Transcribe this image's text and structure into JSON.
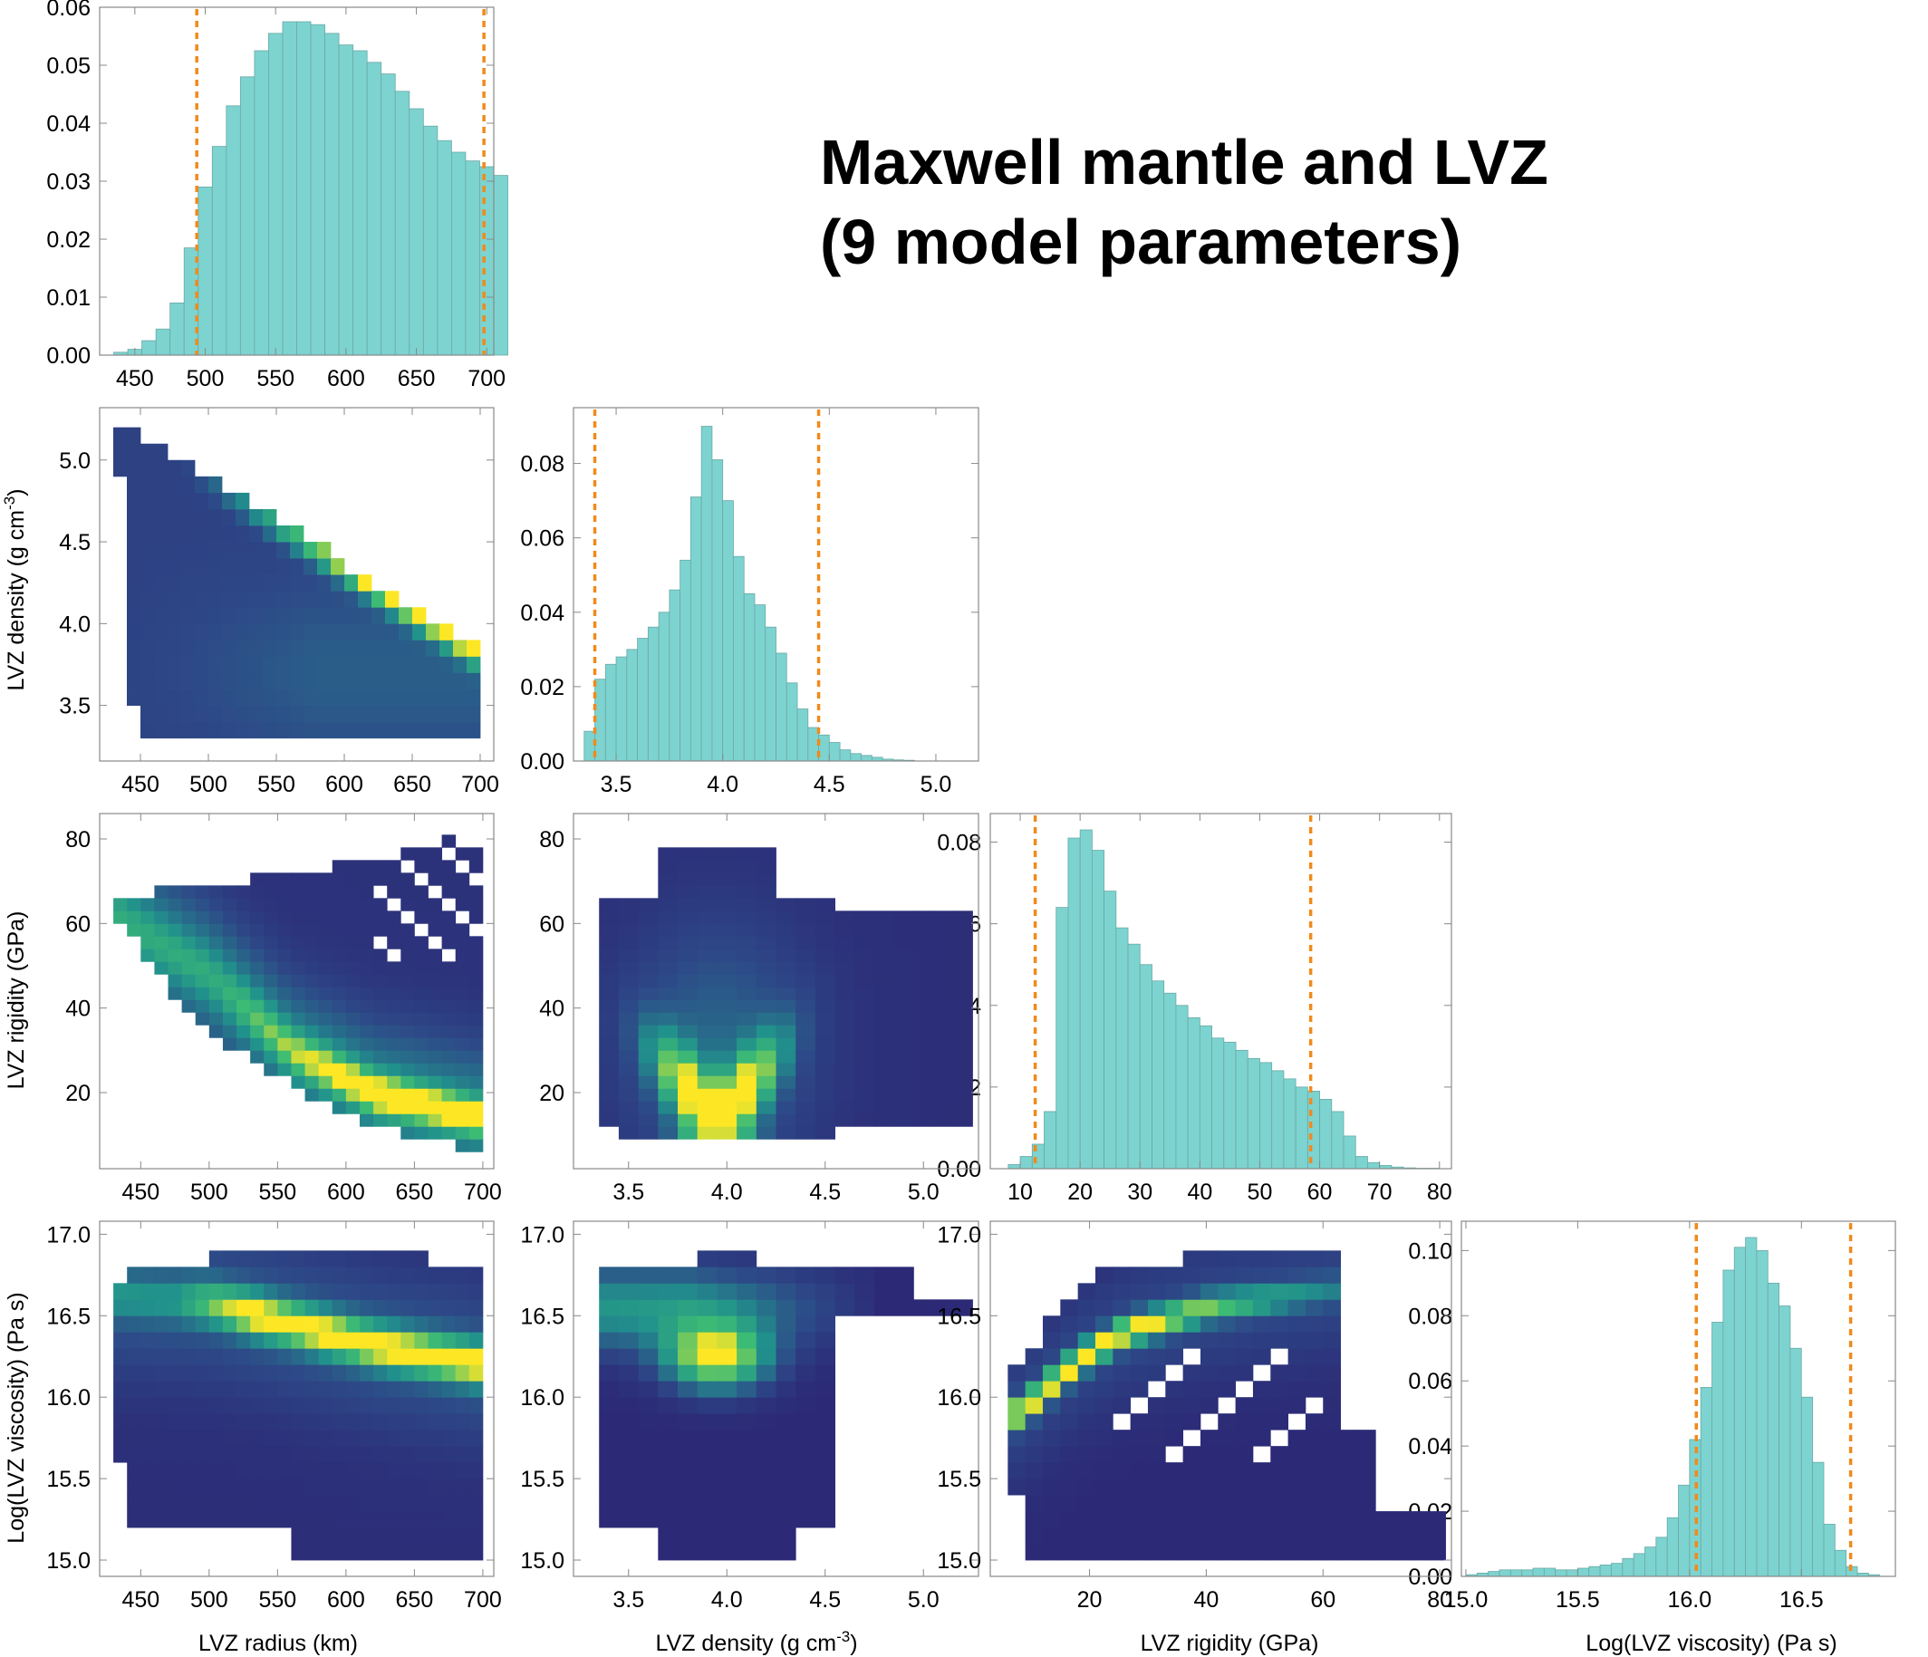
{
  "title": {
    "line1": "Maxwell mantle and LVZ",
    "line2": "(9 model parameters)"
  },
  "labels": {
    "radius_x": "LVZ radius (km)",
    "density_x": "LVZ density (g cm",
    "density_y": "LVZ density (g cm",
    "density_exp": "-3",
    "density_close": ")",
    "rigidity_x": "LVZ rigidity (GPa)",
    "rigidity_y": "LVZ rigidity (GPa)",
    "viscosity_x": "Log(LVZ viscosity) (Pa s)",
    "viscosity_y": "Log(LVZ viscosity) (Pa s)"
  },
  "colors": {
    "hist_fill": "#7dd3cf",
    "hist_edge": "#6aa9a6",
    "bound_line": "#f08a1c",
    "viridis_low": "#2b1b6e",
    "viridis_mid": "#21918c",
    "viridis_high": "#fde725",
    "frame": "#888888"
  },
  "chart_data": [
    {
      "id": "radius-hist",
      "type": "bar",
      "row": 0,
      "col": 0,
      "xlim": [
        425,
        705
      ],
      "ylim": [
        0,
        0.06
      ],
      "xticks": [
        "450",
        "500",
        "550",
        "600",
        "650",
        "700"
      ],
      "xtick_values": [
        450,
        500,
        550,
        600,
        650,
        700
      ],
      "yticks": [
        "0.00",
        "0.01",
        "0.02",
        "0.03",
        "0.04",
        "0.05",
        "0.06"
      ],
      "ytick_values": [
        0,
        0.01,
        0.02,
        0.03,
        0.04,
        0.05,
        0.06
      ],
      "bin_start": 435,
      "bin_width": 10,
      "values": [
        0.0005,
        0.001,
        0.0025,
        0.0045,
        0.009,
        0.0185,
        0.029,
        0.036,
        0.043,
        0.048,
        0.0525,
        0.0555,
        0.0575,
        0.0575,
        0.057,
        0.0555,
        0.0535,
        0.0525,
        0.0505,
        0.0485,
        0.0455,
        0.0425,
        0.0395,
        0.037,
        0.035,
        0.0335,
        0.0325,
        0.031
      ],
      "bounds": [
        494,
        698
      ]
    },
    {
      "id": "density-hist",
      "type": "bar",
      "row": 1,
      "col": 1,
      "xlim": [
        3.3,
        5.2
      ],
      "ylim": [
        0,
        0.095
      ],
      "xticks": [
        "3.5",
        "4.0",
        "4.5",
        "5.0"
      ],
      "xtick_values": [
        3.5,
        4.0,
        4.5,
        5.0
      ],
      "yticks": [
        "0.00",
        "0.02",
        "0.04",
        "0.06",
        "0.08"
      ],
      "ytick_values": [
        0,
        0.02,
        0.04,
        0.06,
        0.08
      ],
      "bin_start": 3.35,
      "bin_width": 0.05,
      "values": [
        0.008,
        0.022,
        0.026,
        0.028,
        0.03,
        0.033,
        0.036,
        0.04,
        0.046,
        0.054,
        0.071,
        0.09,
        0.081,
        0.07,
        0.055,
        0.045,
        0.042,
        0.036,
        0.029,
        0.021,
        0.014,
        0.009,
        0.007,
        0.005,
        0.003,
        0.002,
        0.0015,
        0.001,
        0.0005,
        0.0003,
        0.0002
      ],
      "bounds": [
        3.4,
        4.45
      ]
    },
    {
      "id": "rigidity-hist",
      "type": "bar",
      "row": 2,
      "col": 2,
      "xlim": [
        5,
        82
      ],
      "ylim": [
        0,
        0.087
      ],
      "xticks": [
        "10",
        "20",
        "30",
        "40",
        "50",
        "60",
        "70",
        "80"
      ],
      "xtick_values": [
        10,
        20,
        30,
        40,
        50,
        60,
        70,
        80
      ],
      "yticks": [
        "0.00",
        "0.02",
        "0.04",
        "0.06",
        "0.08"
      ],
      "ytick_values": [
        0,
        0.02,
        0.04,
        0.06,
        0.08
      ],
      "bin_start": 8,
      "bin_width": 2,
      "values": [
        0.001,
        0.003,
        0.006,
        0.014,
        0.064,
        0.081,
        0.083,
        0.078,
        0.068,
        0.059,
        0.055,
        0.05,
        0.046,
        0.043,
        0.04,
        0.037,
        0.035,
        0.032,
        0.031,
        0.029,
        0.027,
        0.026,
        0.024,
        0.022,
        0.02,
        0.019,
        0.017,
        0.014,
        0.008,
        0.003,
        0.0015,
        0.0008,
        0.0004,
        0.0002,
        0.0001,
        0.0001
      ],
      "bounds": [
        12.5,
        58.5
      ]
    },
    {
      "id": "viscosity-hist",
      "type": "bar",
      "row": 3,
      "col": 3,
      "xlim": [
        14.98,
        16.92
      ],
      "ylim": [
        0,
        0.109
      ],
      "xticks": [
        "15.0",
        "15.5",
        "16.0",
        "16.5"
      ],
      "xtick_values": [
        15.0,
        15.5,
        16.0,
        16.5
      ],
      "yticks": [
        "0.00",
        "0.02",
        "0.04",
        "0.06",
        "0.08",
        "0.10"
      ],
      "ytick_values": [
        0,
        0.02,
        0.04,
        0.06,
        0.08,
        0.1
      ],
      "bin_start": 15.0,
      "bin_width": 0.05,
      "values": [
        0.0005,
        0.001,
        0.0015,
        0.002,
        0.002,
        0.002,
        0.0025,
        0.0025,
        0.002,
        0.002,
        0.0025,
        0.003,
        0.0035,
        0.004,
        0.0055,
        0.007,
        0.009,
        0.012,
        0.018,
        0.028,
        0.042,
        0.058,
        0.078,
        0.094,
        0.101,
        0.104,
        0.1,
        0.09,
        0.083,
        0.07,
        0.055,
        0.035,
        0.016,
        0.008,
        0.003,
        0.001,
        0.0005
      ],
      "bounds": [
        16.03,
        16.72
      ]
    },
    {
      "id": "radius-density",
      "type": "heatmap",
      "row": 1,
      "col": 0,
      "xlim": [
        420,
        710
      ],
      "ylim": [
        3.16,
        5.32
      ],
      "xticks": [
        "450",
        "500",
        "550",
        "600",
        "650",
        "700"
      ],
      "xtick_values": [
        450,
        500,
        550,
        600,
        650,
        700
      ],
      "yticks": [
        "3.5",
        "4.0",
        "4.5",
        "5.0"
      ],
      "ytick_values": [
        3.5,
        4.0,
        4.5,
        5.0
      ],
      "x_start": 430,
      "dx": 10,
      "y_start": 3.3,
      "dy": 0.1,
      "density": "boundary-ridge",
      "ridge": [
        [
          500,
          4.7
        ],
        [
          700,
          3.85
        ]
      ]
    },
    {
      "id": "radius-rigidity",
      "type": "heatmap",
      "row": 2,
      "col": 0,
      "xlim": [
        420,
        708
      ],
      "ylim": [
        2,
        86
      ],
      "xticks": [
        "450",
        "500",
        "550",
        "600",
        "650",
        "700"
      ],
      "xtick_values": [
        450,
        500,
        550,
        600,
        650,
        700
      ],
      "yticks": [
        "20",
        "40",
        "60",
        "80"
      ],
      "ytick_values": [
        20,
        40,
        60,
        80
      ],
      "x_start": 430,
      "dx": 10,
      "y_start": 6,
      "dy": 3,
      "density": "curved-ridge",
      "ridge": [
        [
          490,
          60
        ],
        [
          560,
          30
        ],
        [
          700,
          14
        ]
      ]
    },
    {
      "id": "density-rigidity",
      "type": "heatmap",
      "row": 2,
      "col": 1,
      "xlim": [
        3.22,
        5.28
      ],
      "ylim": [
        2,
        86
      ],
      "xticks": [
        "3.5",
        "4.0",
        "4.5",
        "5.0"
      ],
      "xtick_values": [
        3.5,
        4.0,
        4.5,
        5.0
      ],
      "yticks": [
        "20",
        "40",
        "60",
        "80"
      ],
      "ytick_values": [
        20,
        40,
        60,
        80
      ],
      "x_start": 3.35,
      "dx": 0.1,
      "y_start": 9,
      "dy": 3,
      "density": "v-shape",
      "peak": [
        3.95,
        16
      ]
    },
    {
      "id": "radius-viscosity",
      "type": "heatmap",
      "row": 3,
      "col": 0,
      "xlim": [
        420,
        708
      ],
      "ylim": [
        14.9,
        17.08
      ],
      "xticks": [
        "450",
        "500",
        "550",
        "600",
        "650",
        "700"
      ],
      "xtick_values": [
        450,
        500,
        550,
        600,
        650,
        700
      ],
      "yticks": [
        "15.0",
        "15.5",
        "16.0",
        "16.5",
        "17.0"
      ],
      "ytick_values": [
        15.0,
        15.5,
        16.0,
        16.5,
        17.0
      ],
      "x_start": 430,
      "dx": 10,
      "y_start": 15.0,
      "dy": 0.1,
      "density": "diagonal-band",
      "ridge": [
        [
          500,
          16.58
        ],
        [
          700,
          16.2
        ]
      ]
    },
    {
      "id": "density-viscosity",
      "type": "heatmap",
      "row": 3,
      "col": 1,
      "xlim": [
        3.22,
        5.28
      ],
      "ylim": [
        14.9,
        17.08
      ],
      "xticks": [
        "3.5",
        "4.0",
        "4.5",
        "5.0"
      ],
      "xtick_values": [
        3.5,
        4.0,
        4.5,
        5.0
      ],
      "yticks": [
        "15.0",
        "15.5",
        "16.0",
        "16.5",
        "17.0"
      ],
      "ytick_values": [
        15.0,
        15.5,
        16.0,
        16.5,
        17.0
      ],
      "x_start": 3.35,
      "dx": 0.1,
      "y_start": 15.0,
      "dy": 0.1,
      "density": "central-blob",
      "peak": [
        3.95,
        16.25
      ]
    },
    {
      "id": "rigidity-viscosity",
      "type": "heatmap",
      "row": 3,
      "col": 2,
      "xlim": [
        3,
        82
      ],
      "ylim": [
        14.9,
        17.08
      ],
      "xticks": [
        "20",
        "40",
        "60",
        "80"
      ],
      "xtick_values": [
        20,
        40,
        60,
        80
      ],
      "yticks": [
        "15.0",
        "15.5",
        "16.0",
        "16.5",
        "17.0"
      ],
      "ytick_values": [
        15.0,
        15.5,
        16.0,
        16.5,
        17.0
      ],
      "x_start": 6,
      "dx": 3,
      "y_start": 15.0,
      "dy": 0.1,
      "density": "arc",
      "peak": [
        19,
        16.25
      ]
    }
  ]
}
